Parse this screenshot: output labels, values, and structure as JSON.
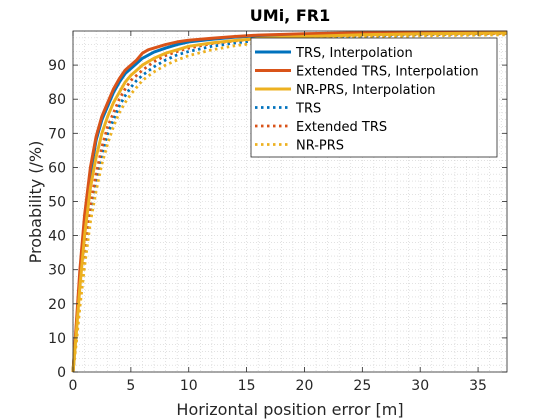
{
  "chart_data": {
    "type": "line",
    "title": "UMi, FR1",
    "xlabel": "Horizontal position error [m]",
    "ylabel": "Probability (/%)",
    "xlim": [
      0,
      37.5
    ],
    "ylim": [
      0,
      100
    ],
    "xticks": [
      0,
      5,
      10,
      15,
      20,
      25,
      30,
      35
    ],
    "yticks": [
      0,
      10,
      20,
      30,
      40,
      50,
      60,
      70,
      80,
      90
    ],
    "grid": "fine dotted minor grid",
    "legend_position": "top-right",
    "series": [
      {
        "name": "TRS, Interpolation",
        "color": "#0072BD",
        "style": "solid",
        "points": [
          [
            0,
            0
          ],
          [
            0.3,
            14
          ],
          [
            0.6,
            28
          ],
          [
            1,
            44
          ],
          [
            1.5,
            58
          ],
          [
            2,
            68
          ],
          [
            2.5,
            74
          ],
          [
            3,
            78
          ],
          [
            3.5,
            82
          ],
          [
            4,
            85
          ],
          [
            4.5,
            87.5
          ],
          [
            5,
            89
          ],
          [
            5.5,
            90.5
          ],
          [
            6,
            92
          ],
          [
            7,
            93.8
          ],
          [
            8,
            95
          ],
          [
            9,
            96
          ],
          [
            10,
            96.8
          ],
          [
            12,
            97.6
          ],
          [
            14,
            98.2
          ],
          [
            16,
            98.6
          ],
          [
            20,
            99
          ],
          [
            25,
            99.3
          ],
          [
            30,
            99.5
          ],
          [
            37.5,
            99.6
          ]
        ]
      },
      {
        "name": "Extended TRS, Interpolation",
        "color": "#D95319",
        "style": "solid",
        "points": [
          [
            0,
            0
          ],
          [
            0.3,
            15
          ],
          [
            0.6,
            30
          ],
          [
            1,
            46
          ],
          [
            1.5,
            60
          ],
          [
            2,
            69
          ],
          [
            2.5,
            75
          ],
          [
            3,
            79
          ],
          [
            3.5,
            83
          ],
          [
            4,
            86
          ],
          [
            4.5,
            88.5
          ],
          [
            5,
            90
          ],
          [
            5.5,
            91.5
          ],
          [
            6,
            93.5
          ],
          [
            6.5,
            94.5
          ],
          [
            7,
            95
          ],
          [
            8,
            96
          ],
          [
            9,
            96.8
          ],
          [
            10,
            97.3
          ],
          [
            12,
            97.9
          ],
          [
            14,
            98.4
          ],
          [
            16,
            98.8
          ],
          [
            20,
            99.2
          ],
          [
            25,
            99.5
          ],
          [
            30,
            99.6
          ],
          [
            37.5,
            99.7
          ]
        ]
      },
      {
        "name": "NR-PRS, Interpolation",
        "color": "#EDB120",
        "style": "solid",
        "points": [
          [
            0,
            0
          ],
          [
            0.3,
            12
          ],
          [
            0.6,
            25
          ],
          [
            1,
            40
          ],
          [
            1.5,
            54
          ],
          [
            2,
            63
          ],
          [
            2.5,
            70
          ],
          [
            3,
            75
          ],
          [
            3.5,
            79
          ],
          [
            4,
            82
          ],
          [
            4.5,
            85
          ],
          [
            5,
            87
          ],
          [
            5.5,
            88.5
          ],
          [
            6,
            90
          ],
          [
            7,
            92
          ],
          [
            8,
            93.5
          ],
          [
            9,
            94.5
          ],
          [
            10,
            95.5
          ],
          [
            12,
            96.5
          ],
          [
            14,
            97.2
          ],
          [
            16,
            97.8
          ],
          [
            20,
            98.4
          ],
          [
            25,
            98.9
          ],
          [
            30,
            99.2
          ],
          [
            37.5,
            99.4
          ]
        ]
      },
      {
        "name": "TRS",
        "color": "#0072BD",
        "style": "dotted",
        "points": [
          [
            0,
            0
          ],
          [
            0.3,
            10
          ],
          [
            0.6,
            21
          ],
          [
            1,
            34
          ],
          [
            1.5,
            47
          ],
          [
            2,
            56
          ],
          [
            2.5,
            64
          ],
          [
            3,
            70
          ],
          [
            3.5,
            74
          ],
          [
            4,
            78
          ],
          [
            4.5,
            81
          ],
          [
            5,
            83.5
          ],
          [
            5.5,
            85.5
          ],
          [
            6,
            87
          ],
          [
            7,
            89.5
          ],
          [
            8,
            91.5
          ],
          [
            9,
            93
          ],
          [
            10,
            94
          ],
          [
            12,
            95.5
          ],
          [
            14,
            96.5
          ],
          [
            16,
            97.2
          ],
          [
            20,
            98
          ],
          [
            25,
            98.5
          ],
          [
            30,
            98.9
          ],
          [
            37.5,
            99.2
          ]
        ]
      },
      {
        "name": "Extended TRS",
        "color": "#D95319",
        "style": "dotted",
        "points": [
          [
            0,
            0
          ],
          [
            0.3,
            11
          ],
          [
            0.6,
            22
          ],
          [
            1,
            36
          ],
          [
            1.5,
            49
          ],
          [
            2,
            58
          ],
          [
            2.5,
            66
          ],
          [
            3,
            72
          ],
          [
            3.5,
            76
          ],
          [
            4,
            80
          ],
          [
            4.5,
            83
          ],
          [
            5,
            85.5
          ],
          [
            5.5,
            87
          ],
          [
            6,
            88.5
          ],
          [
            7,
            91
          ],
          [
            8,
            92.8
          ],
          [
            9,
            94
          ],
          [
            10,
            95
          ],
          [
            12,
            96.3
          ],
          [
            14,
            97.1
          ],
          [
            16,
            97.7
          ],
          [
            20,
            98.4
          ],
          [
            25,
            98.8
          ],
          [
            30,
            99.1
          ],
          [
            37.5,
            99.3
          ]
        ]
      },
      {
        "name": "NR-PRS",
        "color": "#EDB120",
        "style": "dotted",
        "points": [
          [
            0,
            0
          ],
          [
            0.3,
            9
          ],
          [
            0.6,
            19
          ],
          [
            1,
            31
          ],
          [
            1.5,
            44
          ],
          [
            2,
            53
          ],
          [
            2.5,
            61
          ],
          [
            3,
            67
          ],
          [
            3.5,
            72
          ],
          [
            4,
            76
          ],
          [
            4.5,
            79
          ],
          [
            5,
            81.5
          ],
          [
            5.5,
            83.5
          ],
          [
            6,
            85.5
          ],
          [
            7,
            88
          ],
          [
            8,
            90
          ],
          [
            9,
            91.5
          ],
          [
            10,
            92.8
          ],
          [
            12,
            94.5
          ],
          [
            14,
            95.7
          ],
          [
            16,
            96.5
          ],
          [
            20,
            97.5
          ],
          [
            25,
            98.2
          ],
          [
            30,
            98.6
          ],
          [
            37.5,
            98.9
          ]
        ]
      }
    ]
  }
}
